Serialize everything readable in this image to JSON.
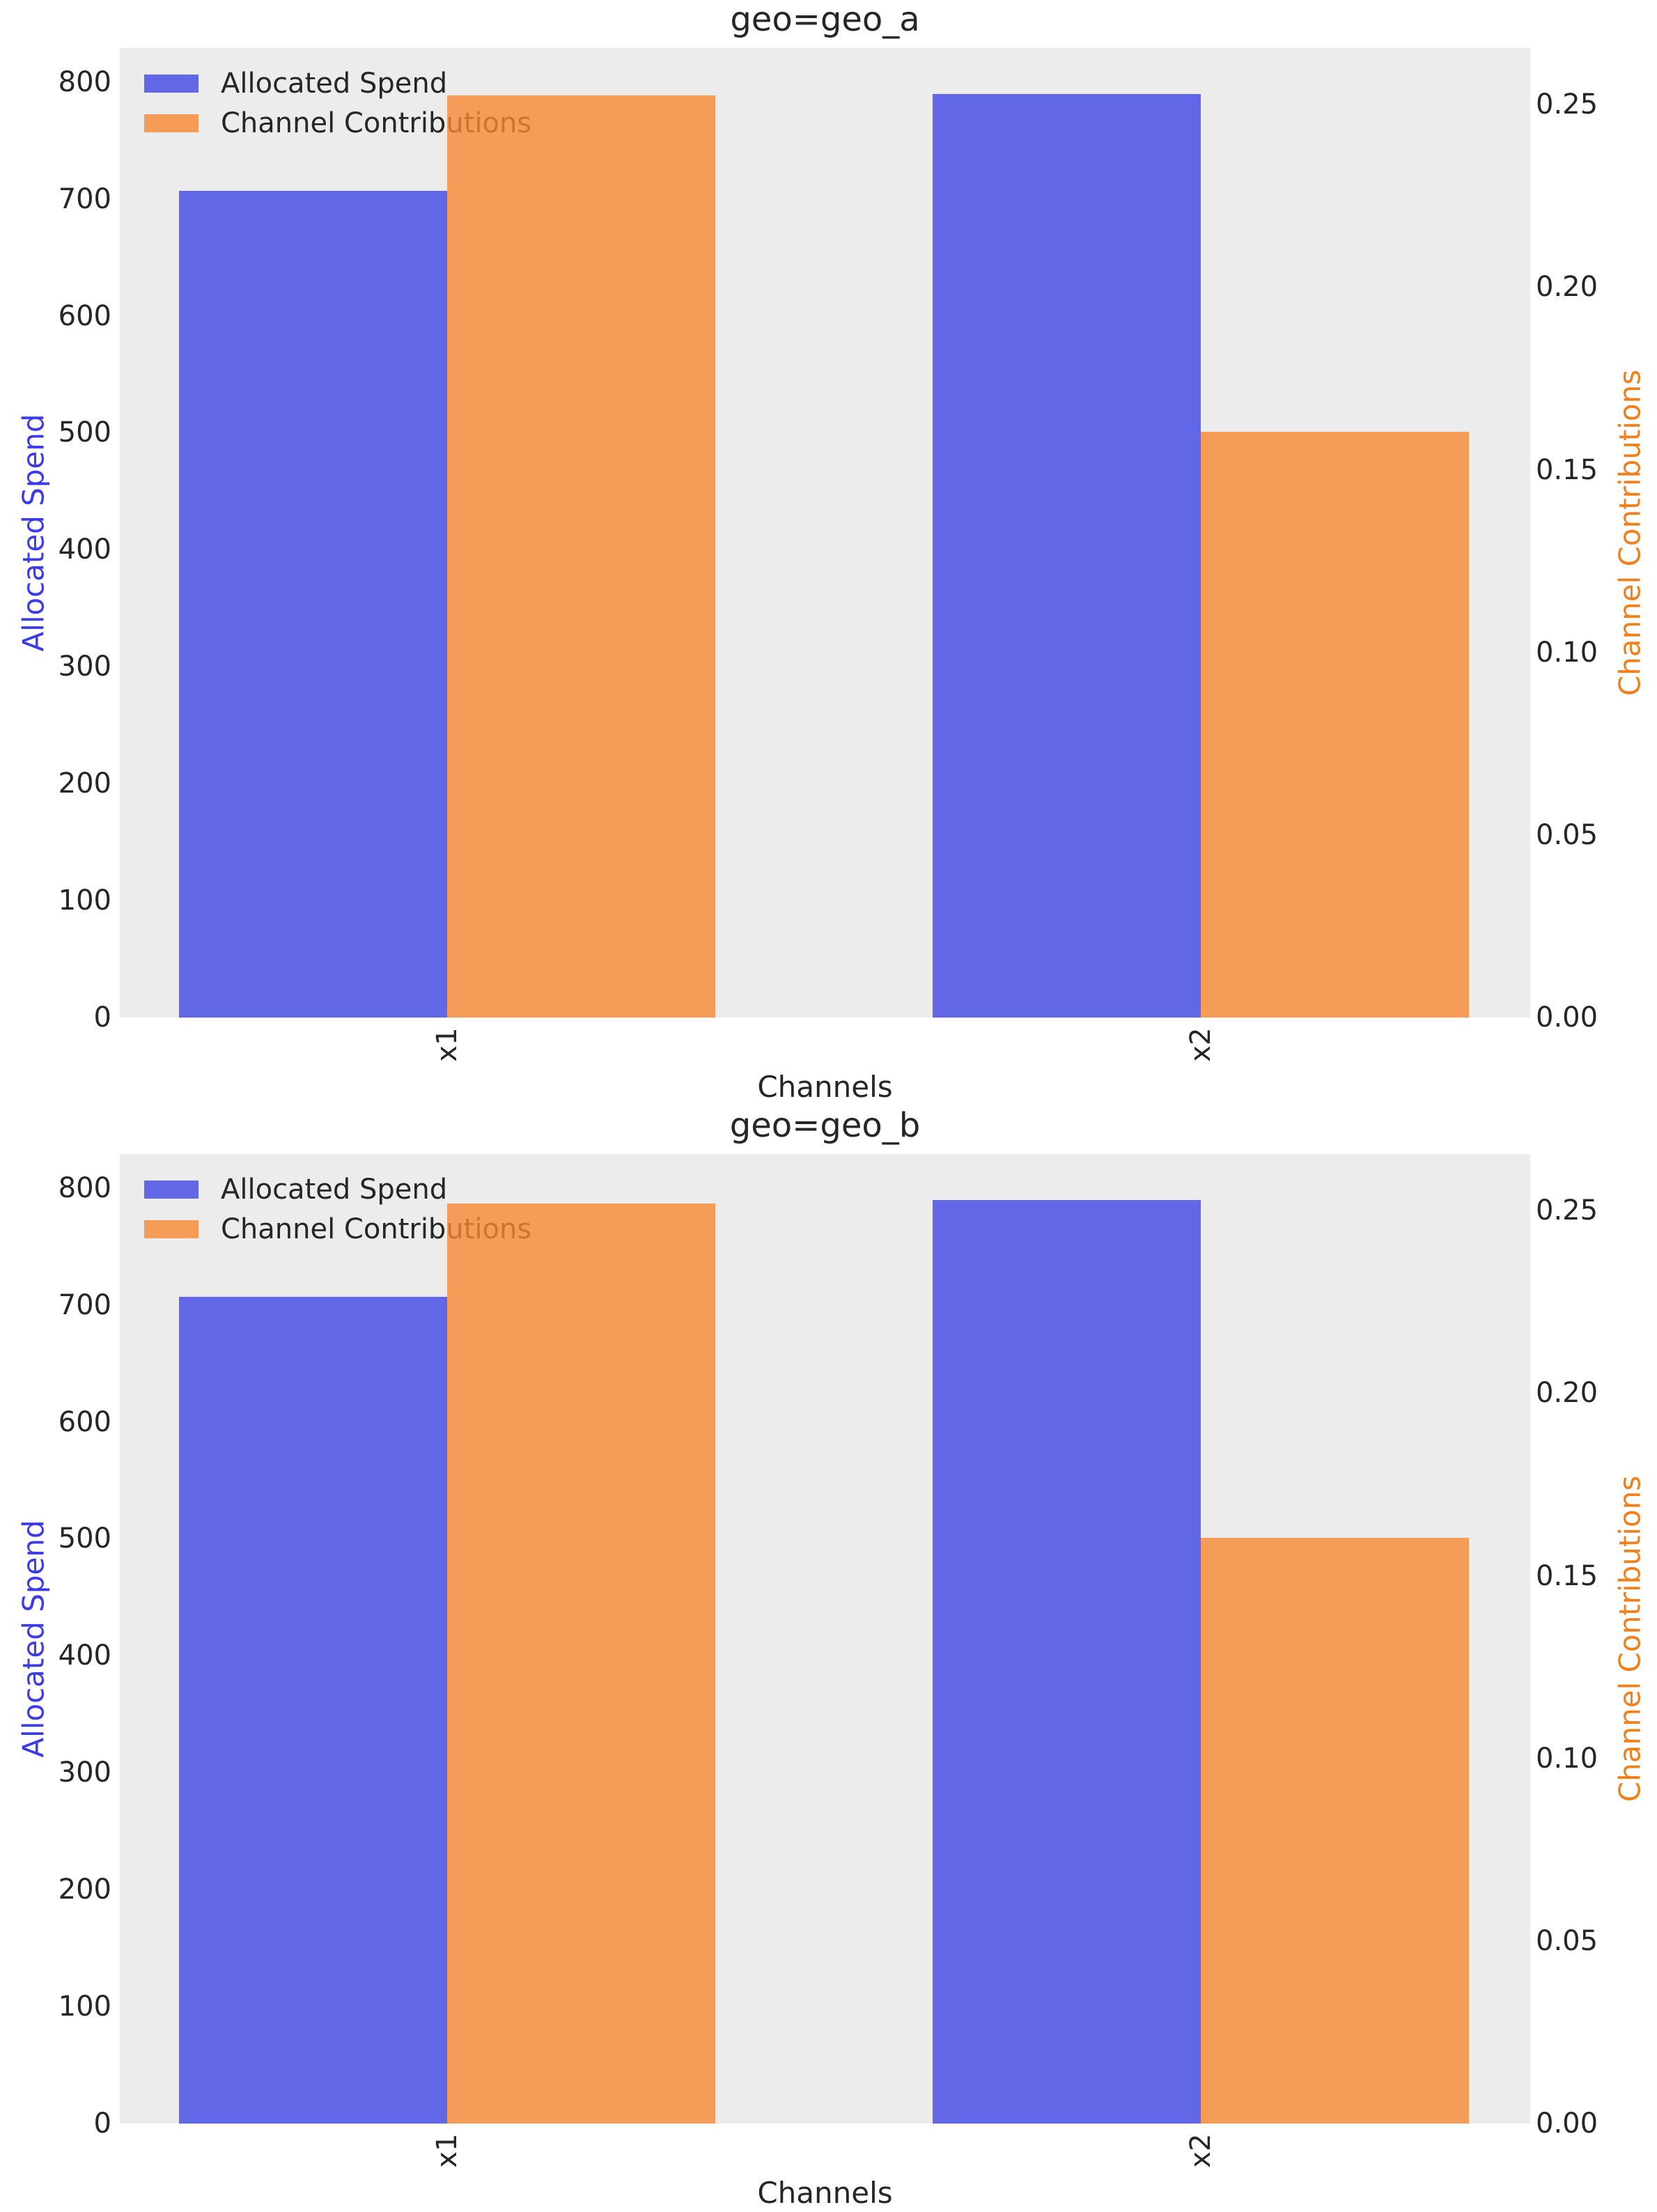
{
  "figure": {
    "background": "#ffffff",
    "plot_background": "#ececec",
    "text_color": "#262626",
    "bar_colors": {
      "allocated_spend": "rgba(64,70,231,0.8)",
      "channel_contributions": "rgba(246,136,51,0.8)"
    },
    "axis_label_colors": {
      "left": "#3b3be8",
      "right": "#f0801c"
    }
  },
  "chart_data": [
    {
      "type": "bar",
      "title": "geo=geo_a",
      "xlabel": "Channels",
      "ylabel_left": "Allocated Spend",
      "ylabel_right": "Channel Contributions",
      "categories": [
        "x1",
        "x2"
      ],
      "series": [
        {
          "name": "Allocated Spend",
          "axis": "left",
          "values": [
            707,
            790
          ]
        },
        {
          "name": "Channel Contributions",
          "axis": "right",
          "values": [
            0.2525,
            0.1605
          ]
        }
      ],
      "yticks_left": [
        "0",
        "100",
        "200",
        "300",
        "400",
        "500",
        "600",
        "700",
        "800"
      ],
      "yticks_right": [
        "0.00",
        "0.05",
        "0.10",
        "0.15",
        "0.20",
        "0.25"
      ],
      "ylim_left": [
        0,
        829
      ],
      "ylim_right": [
        0,
        0.2655
      ],
      "legend_position": "upper-left",
      "grid": false
    },
    {
      "type": "bar",
      "title": "geo=geo_b",
      "xlabel": "Channels",
      "ylabel_left": "Allocated Spend",
      "ylabel_right": "Channel Contributions",
      "categories": [
        "x1",
        "x2"
      ],
      "series": [
        {
          "name": "Allocated Spend",
          "axis": "left",
          "values": [
            707,
            790
          ]
        },
        {
          "name": "Channel Contributions",
          "axis": "right",
          "values": [
            0.252,
            0.1605
          ]
        }
      ],
      "yticks_left": [
        "0",
        "100",
        "200",
        "300",
        "400",
        "500",
        "600",
        "700",
        "800"
      ],
      "yticks_right": [
        "0.00",
        "0.05",
        "0.10",
        "0.15",
        "0.20",
        "0.25"
      ],
      "ylim_left": [
        0,
        829
      ],
      "ylim_right": [
        0,
        0.2655
      ],
      "legend_position": "upper-left",
      "grid": false
    }
  ]
}
